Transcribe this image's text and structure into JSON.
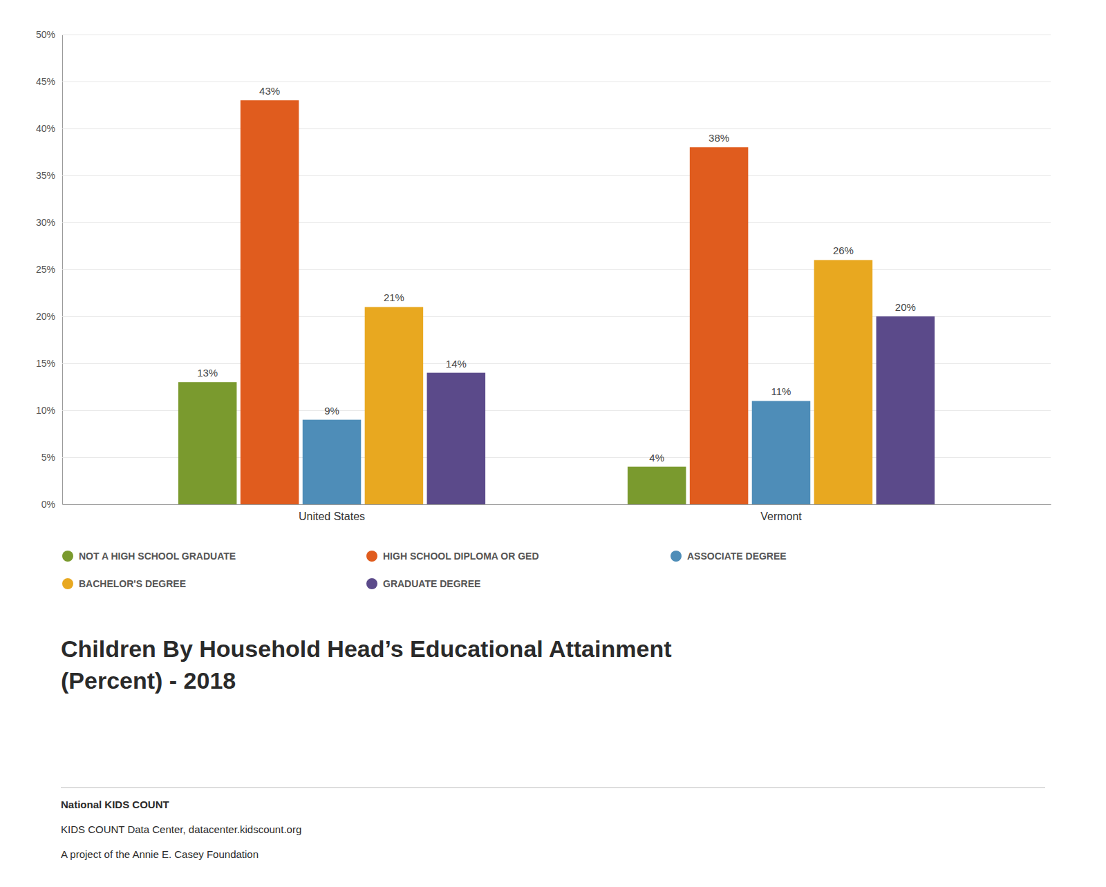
{
  "chart_data": {
    "type": "bar",
    "title": "Children By Household Head’s Educational Attainment",
    "subtitle": "(Percent) - 2018",
    "annotations": [
      "National KIDS COUNT",
      "KIDS COUNT Data Center, datacenter.kidscount.org",
      "A project of the Annie E. Casey Foundation"
    ],
    "categories": [
      "United States",
      "Vermont"
    ],
    "series": [
      {
        "name": "NOT A HIGH SCHOOL GRADUATE",
        "color": "#7a9a2e",
        "values": [
          13,
          4
        ],
        "value_labels": [
          "13%",
          "4%"
        ]
      },
      {
        "name": "HIGH SCHOOL DIPLOMA OR GED",
        "color": "#e05c1e",
        "values": [
          43,
          38
        ],
        "value_labels": [
          "43%",
          "38%"
        ]
      },
      {
        "name": "ASSOCIATE DEGREE",
        "color": "#4e8db8",
        "values": [
          9,
          11
        ],
        "value_labels": [
          "9%",
          "11%"
        ]
      },
      {
        "name": "BACHELOR'S DEGREE",
        "color": "#e8a820",
        "values": [
          21,
          26
        ],
        "value_labels": [
          "21%",
          "26%"
        ]
      },
      {
        "name": "GRADUATE DEGREE",
        "color": "#5b4a8a",
        "values": [
          14,
          20
        ],
        "value_labels": [
          "14%",
          "20%"
        ]
      }
    ],
    "ylim": [
      0,
      50
    ],
    "yticks": [
      {
        "value": 0,
        "label": "0%"
      },
      {
        "value": 5,
        "label": "5%"
      },
      {
        "value": 10,
        "label": "10%"
      },
      {
        "value": 15,
        "label": "15%"
      },
      {
        "value": 20,
        "label": "20%"
      },
      {
        "value": 25,
        "label": "25%"
      },
      {
        "value": 30,
        "label": "30%"
      },
      {
        "value": 35,
        "label": "35%"
      },
      {
        "value": 40,
        "label": "40%"
      },
      {
        "value": 45,
        "label": "45%"
      },
      {
        "value": 50,
        "label": "50%"
      }
    ],
    "grid": true,
    "data_labels": true,
    "legend": "bottom"
  }
}
